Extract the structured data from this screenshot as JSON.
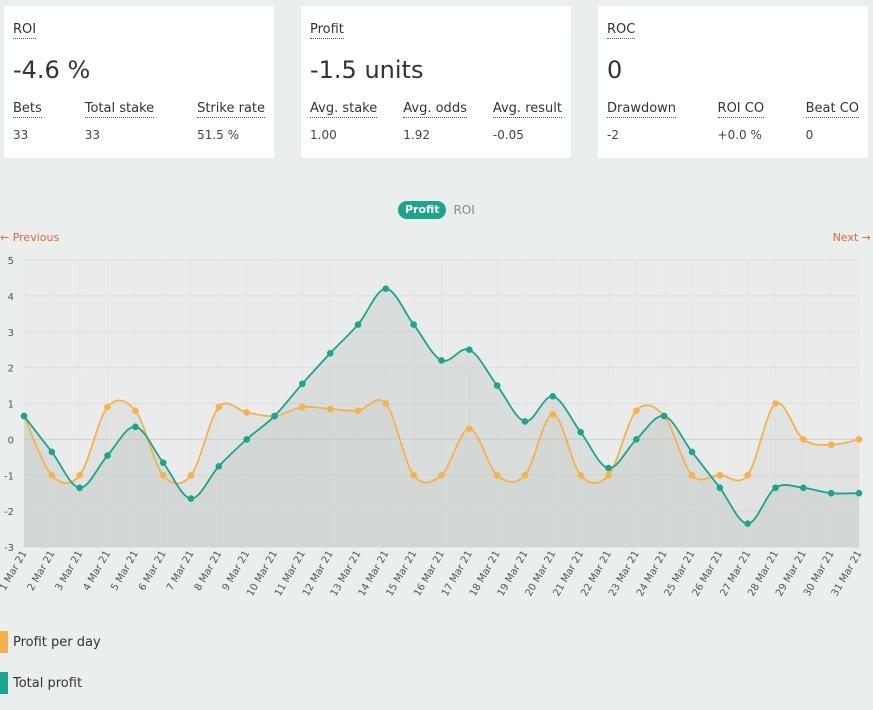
{
  "cards": [
    {
      "label": "ROI",
      "value": "-4.6 %",
      "subs": [
        {
          "label": "Bets",
          "value": "33"
        },
        {
          "label": "Total stake",
          "value": "33"
        },
        {
          "label": "Strike rate",
          "value": "51.5 %"
        }
      ]
    },
    {
      "label": "Profit",
      "value": "-1.5 units",
      "subs": [
        {
          "label": "Avg. stake",
          "value": "1.00"
        },
        {
          "label": "Avg. odds",
          "value": "1.92"
        },
        {
          "label": "Avg. result",
          "value": "-0.05"
        }
      ]
    },
    {
      "label": "ROC",
      "value": "0",
      "subs": [
        {
          "label": "Drawdown",
          "value": "-2"
        },
        {
          "label": "ROI CO",
          "value": "+0.0 %"
        },
        {
          "label": "Beat CO",
          "value": "0"
        }
      ]
    }
  ],
  "toggle": {
    "active": "Profit",
    "inactive": "ROI"
  },
  "nav": {
    "previous": "← Previous",
    "next": "Next →"
  },
  "legend": [
    {
      "label": "Profit per day",
      "color": "#f6b24a"
    },
    {
      "label": "Total profit",
      "color": "#1aa58e"
    }
  ],
  "chart_data": {
    "type": "line",
    "ylim": [
      -3,
      5
    ],
    "yticks": [
      "5",
      "4",
      "3",
      "2",
      "1",
      "0",
      "-1",
      "-2",
      "-3"
    ],
    "grid": true,
    "legend_position": "bottom-left",
    "x": [
      "1 Mar 21",
      "2 Mar 21",
      "3 Mar 21",
      "4 Mar 21",
      "5 Mar 21",
      "6 Mar 21",
      "7 Mar 21",
      "8 Mar 21",
      "9 Mar 21",
      "10 Mar 21",
      "11 Mar 21",
      "12 Mar 21",
      "13 Mar 21",
      "14 Mar 21",
      "15 Mar 21",
      "16 Mar 21",
      "17 Mar 21",
      "18 Mar 21",
      "19 Mar 21",
      "20 Mar 21",
      "21 Mar 21",
      "22 Mar 21",
      "23 Mar 21",
      "24 Mar 21",
      "25 Mar 21",
      "26 Mar 21",
      "27 Mar 21",
      "28 Mar 21",
      "29 Mar 21",
      "30 Mar 21",
      "31 Mar 21"
    ],
    "series": [
      {
        "name": "Profit per day",
        "color": "#f6b24a",
        "values": [
          0.65,
          -1,
          -1,
          0.9,
          0.8,
          -1,
          -1,
          0.9,
          0.75,
          0.65,
          0.9,
          0.85,
          0.8,
          1,
          -1,
          -1,
          0.3,
          -1,
          -1,
          0.7,
          -1,
          -1,
          0.8,
          0.65,
          -1,
          -1,
          -1,
          1,
          0,
          -0.15,
          0
        ]
      },
      {
        "name": "Total profit",
        "color": "#1aa58e",
        "values": [
          0.65,
          -0.35,
          -1.35,
          -0.45,
          0.35,
          -0.65,
          -1.65,
          -0.75,
          0,
          0.65,
          1.55,
          2.4,
          3.2,
          4.2,
          3.2,
          2.2,
          2.5,
          1.5,
          0.5,
          1.2,
          0.2,
          -0.8,
          0,
          0.65,
          -0.35,
          -1.35,
          -2.35,
          -1.35,
          -1.35,
          -1.5,
          -1.5
        ]
      }
    ]
  }
}
